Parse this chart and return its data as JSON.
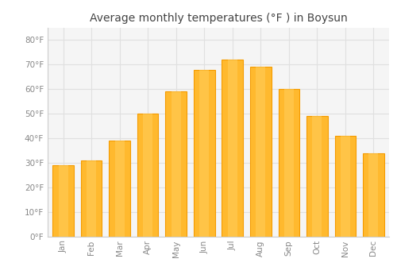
{
  "months": [
    "Jan",
    "Feb",
    "Mar",
    "Apr",
    "May",
    "Jun",
    "Jul",
    "Aug",
    "Sep",
    "Oct",
    "Nov",
    "Dec"
  ],
  "values": [
    29,
    31,
    39,
    50,
    59,
    68,
    72,
    69,
    60,
    49,
    41,
    34
  ],
  "bar_color_center": "#FFB92E",
  "bar_color_edge": "#F59B00",
  "background_color": "#FFFFFF",
  "plot_bg_color": "#F5F5F5",
  "grid_color": "#E0E0E0",
  "title": "Average monthly temperatures (°F ) in Boysun",
  "title_fontsize": 10,
  "ylabel_ticks": [
    0,
    10,
    20,
    30,
    40,
    50,
    60,
    70,
    80
  ],
  "ylim": [
    0,
    85
  ],
  "tick_label_color": "#888888",
  "title_color": "#444444"
}
